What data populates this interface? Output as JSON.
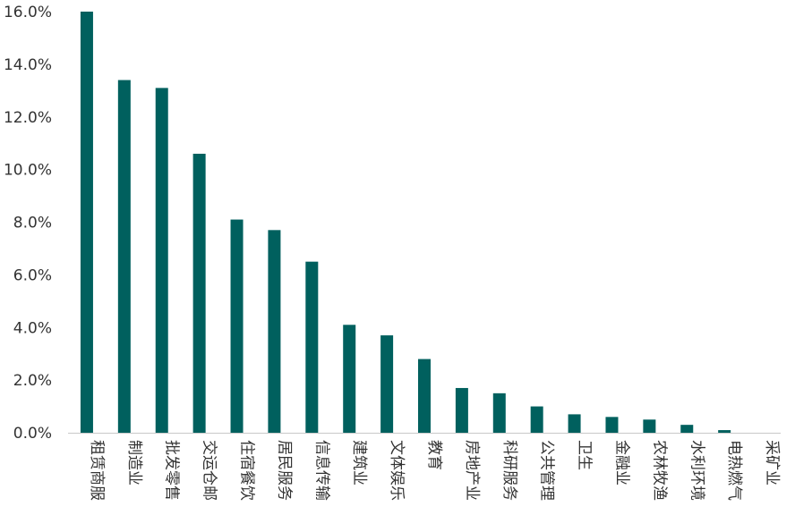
{
  "chart_data": {
    "type": "bar",
    "title": "",
    "xlabel": "",
    "ylabel": "",
    "categories": [
      "租赁商服",
      "制造业",
      "批发零售",
      "交运仓邮",
      "住宿餐饮",
      "居民服务",
      "信息传输",
      "建筑业",
      "文体娱乐",
      "教育",
      "房地产业",
      "科研服务",
      "公共管理",
      "卫生",
      "金融业",
      "农林牧渔",
      "水利环境",
      "电热燃气",
      "采矿业"
    ],
    "values": [
      16.0,
      13.4,
      13.1,
      10.6,
      8.1,
      7.7,
      6.5,
      4.1,
      3.7,
      2.8,
      1.7,
      1.5,
      1.0,
      0.7,
      0.6,
      0.5,
      0.3,
      0.1,
      0.0
    ],
    "value_format": "percent_1dp",
    "ylim": [
      0,
      16
    ],
    "yticks": [
      0,
      2,
      4,
      6,
      8,
      10,
      12,
      14,
      16
    ],
    "ytick_labels": [
      "0.0%",
      "2.0%",
      "4.0%",
      "6.0%",
      "8.0%",
      "10.0%",
      "12.0%",
      "14.0%",
      "16.0%"
    ],
    "grid": false,
    "legend": "none",
    "bar_color": "#00605E"
  }
}
